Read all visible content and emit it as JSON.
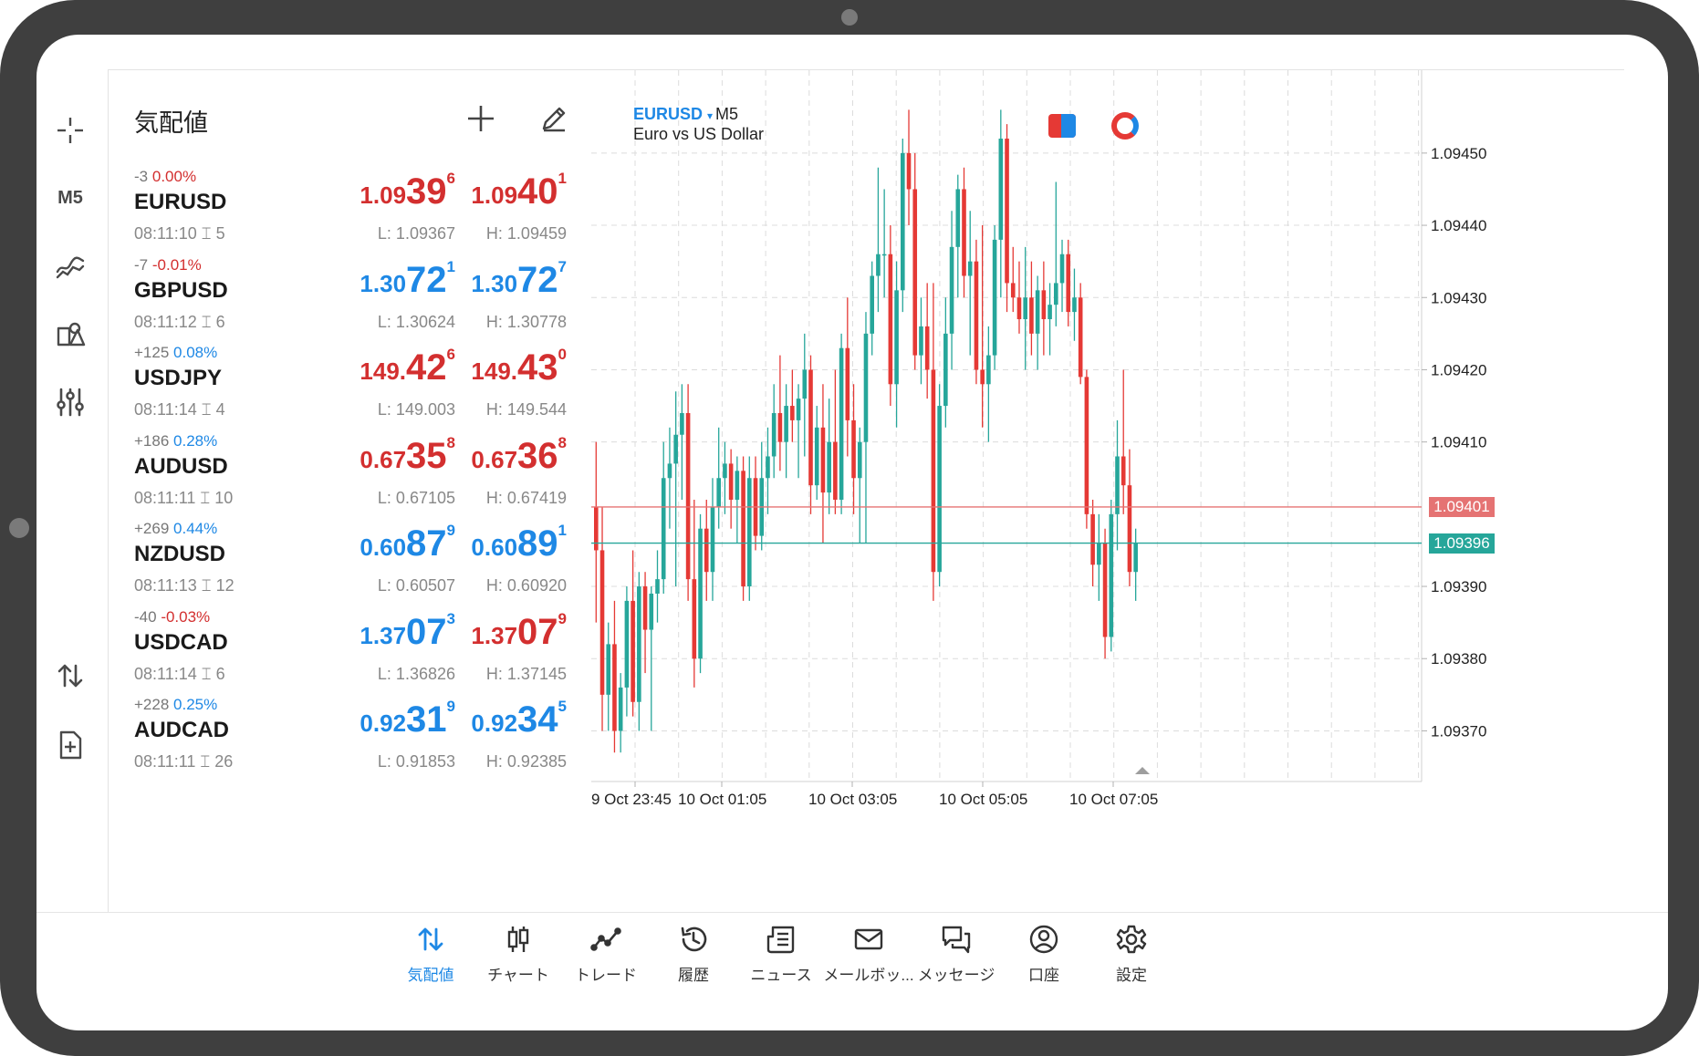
{
  "left_toolbar": {
    "timeframe": "M5"
  },
  "quotes": {
    "title": "気配値",
    "rows": [
      {
        "change": "-3",
        "pct": "0.00%",
        "pct_dir": "neg",
        "symbol": "EURUSD",
        "time": "08:11:10",
        "spread": "5",
        "bid": {
          "small": "1.09",
          "big": "39",
          "sup": "6",
          "color": "red"
        },
        "ask": {
          "small": "1.09",
          "big": "40",
          "sup": "1",
          "color": "red"
        },
        "low": "L: 1.09367",
        "high": "H: 1.09459"
      },
      {
        "change": "-7",
        "pct": "-0.01%",
        "pct_dir": "neg",
        "symbol": "GBPUSD",
        "time": "08:11:12",
        "spread": "6",
        "bid": {
          "small": "1.30",
          "big": "72",
          "sup": "1",
          "color": "blue"
        },
        "ask": {
          "small": "1.30",
          "big": "72",
          "sup": "7",
          "color": "blue"
        },
        "low": "L: 1.30624",
        "high": "H: 1.30778"
      },
      {
        "change": "+125",
        "pct": "0.08%",
        "pct_dir": "pos",
        "symbol": "USDJPY",
        "time": "08:11:14",
        "spread": "4",
        "bid": {
          "small": "149.",
          "big": "42",
          "sup": "6",
          "color": "red"
        },
        "ask": {
          "small": "149.",
          "big": "43",
          "sup": "0",
          "color": "red"
        },
        "low": "L: 149.003",
        "high": "H: 149.544"
      },
      {
        "change": "+186",
        "pct": "0.28%",
        "pct_dir": "pos",
        "symbol": "AUDUSD",
        "time": "08:11:11",
        "spread": "10",
        "bid": {
          "small": "0.67",
          "big": "35",
          "sup": "8",
          "color": "red"
        },
        "ask": {
          "small": "0.67",
          "big": "36",
          "sup": "8",
          "color": "red"
        },
        "low": "L: 0.67105",
        "high": "H: 0.67419"
      },
      {
        "change": "+269",
        "pct": "0.44%",
        "pct_dir": "pos",
        "symbol": "NZDUSD",
        "time": "08:11:13",
        "spread": "12",
        "bid": {
          "small": "0.60",
          "big": "87",
          "sup": "9",
          "color": "blue"
        },
        "ask": {
          "small": "0.60",
          "big": "89",
          "sup": "1",
          "color": "blue"
        },
        "low": "L: 0.60507",
        "high": "H: 0.60920"
      },
      {
        "change": "-40",
        "pct": "-0.03%",
        "pct_dir": "neg",
        "symbol": "USDCAD",
        "time": "08:11:14",
        "spread": "6",
        "bid": {
          "small": "1.37",
          "big": "07",
          "sup": "3",
          "color": "blue"
        },
        "ask": {
          "small": "1.37",
          "big": "07",
          "sup": "9",
          "color": "red"
        },
        "low": "L: 1.36826",
        "high": "H: 1.37145"
      },
      {
        "change": "+228",
        "pct": "0.25%",
        "pct_dir": "pos",
        "symbol": "AUDCAD",
        "time": "08:11:11",
        "spread": "26",
        "bid": {
          "small": "0.92",
          "big": "31",
          "sup": "9",
          "color": "blue"
        },
        "ask": {
          "small": "0.92",
          "big": "34",
          "sup": "5",
          "color": "blue"
        },
        "low": "L: 0.91853",
        "high": "H: 0.92385"
      }
    ]
  },
  "chart_header": {
    "symbol": "EURUSD",
    "dropdown": "▾",
    "timeframe": "M5",
    "description": "Euro vs US Dollar"
  },
  "chart_data": {
    "type": "candlestick",
    "symbol": "EURUSD",
    "timeframe": "M5",
    "y_ticks": [
      "1.09450",
      "1.09440",
      "1.09430",
      "1.09420",
      "1.09410",
      "1.09390",
      "1.09380",
      "1.09370"
    ],
    "y_tick_values": [
      1.0945,
      1.0944,
      1.0943,
      1.0942,
      1.0941,
      1.0939,
      1.0938,
      1.0937
    ],
    "ylim": [
      1.09365,
      1.0946
    ],
    "x_ticks": [
      "9 Oct 23:45",
      "10 Oct 01:05",
      "10 Oct 03:05",
      "10 Oct 05:05",
      "10 Oct 07:05"
    ],
    "ask_line": {
      "label": "1.09401",
      "value": 1.09401,
      "color": "#e57373"
    },
    "bid_line": {
      "label": "1.09396",
      "value": 1.09396,
      "color": "#26a69a"
    },
    "bull_color": "#26a69a",
    "bear_color": "#e53935",
    "grid": true,
    "candles": [
      {
        "o": 1.09401,
        "h": 1.0941,
        "l": 1.09385,
        "c": 1.09395
      },
      {
        "o": 1.09395,
        "h": 1.09401,
        "l": 1.0937,
        "c": 1.09375
      },
      {
        "o": 1.09375,
        "h": 1.09385,
        "l": 1.0937,
        "c": 1.09382
      },
      {
        "o": 1.09382,
        "h": 1.09388,
        "l": 1.09367,
        "c": 1.0937
      },
      {
        "o": 1.0937,
        "h": 1.09378,
        "l": 1.09367,
        "c": 1.09376
      },
      {
        "o": 1.09376,
        "h": 1.0939,
        "l": 1.09372,
        "c": 1.09388
      },
      {
        "o": 1.09388,
        "h": 1.09395,
        "l": 1.09372,
        "c": 1.09374
      },
      {
        "o": 1.09374,
        "h": 1.09392,
        "l": 1.0937,
        "c": 1.0939
      },
      {
        "o": 1.0939,
        "h": 1.09392,
        "l": 1.09378,
        "c": 1.09384
      },
      {
        "o": 1.09384,
        "h": 1.0939,
        "l": 1.0937,
        "c": 1.09389
      },
      {
        "o": 1.09389,
        "h": 1.09395,
        "l": 1.09385,
        "c": 1.09391
      },
      {
        "o": 1.09391,
        "h": 1.0941,
        "l": 1.09389,
        "c": 1.09405
      },
      {
        "o": 1.09405,
        "h": 1.09412,
        "l": 1.09398,
        "c": 1.09407
      },
      {
        "o": 1.09407,
        "h": 1.09417,
        "l": 1.0939,
        "c": 1.09411
      },
      {
        "o": 1.09411,
        "h": 1.09418,
        "l": 1.09402,
        "c": 1.09414
      },
      {
        "o": 1.09414,
        "h": 1.09418,
        "l": 1.09388,
        "c": 1.09391
      },
      {
        "o": 1.09391,
        "h": 1.09402,
        "l": 1.09376,
        "c": 1.0938
      },
      {
        "o": 1.0938,
        "h": 1.094,
        "l": 1.09378,
        "c": 1.09398
      },
      {
        "o": 1.09398,
        "h": 1.09402,
        "l": 1.09388,
        "c": 1.09392
      },
      {
        "o": 1.09392,
        "h": 1.09405,
        "l": 1.09388,
        "c": 1.09401
      },
      {
        "o": 1.09401,
        "h": 1.09412,
        "l": 1.09398,
        "c": 1.09405
      },
      {
        "o": 1.09405,
        "h": 1.0941,
        "l": 1.094,
        "c": 1.09407
      },
      {
        "o": 1.09407,
        "h": 1.09409,
        "l": 1.09398,
        "c": 1.09402
      },
      {
        "o": 1.09402,
        "h": 1.09408,
        "l": 1.09396,
        "c": 1.09406
      },
      {
        "o": 1.09406,
        "h": 1.09408,
        "l": 1.09388,
        "c": 1.0939
      },
      {
        "o": 1.0939,
        "h": 1.09408,
        "l": 1.09388,
        "c": 1.09405
      },
      {
        "o": 1.09405,
        "h": 1.09408,
        "l": 1.09395,
        "c": 1.09397
      },
      {
        "o": 1.09397,
        "h": 1.0941,
        "l": 1.09395,
        "c": 1.09405
      },
      {
        "o": 1.09405,
        "h": 1.09412,
        "l": 1.094,
        "c": 1.09408
      },
      {
        "o": 1.09408,
        "h": 1.09418,
        "l": 1.09405,
        "c": 1.09414
      },
      {
        "o": 1.09414,
        "h": 1.09422,
        "l": 1.09406,
        "c": 1.0941
      },
      {
        "o": 1.0941,
        "h": 1.09418,
        "l": 1.09405,
        "c": 1.09415
      },
      {
        "o": 1.09415,
        "h": 1.0942,
        "l": 1.0941,
        "c": 1.09413
      },
      {
        "o": 1.09413,
        "h": 1.09418,
        "l": 1.09405,
        "c": 1.09416
      },
      {
        "o": 1.09416,
        "h": 1.09425,
        "l": 1.09408,
        "c": 1.0942
      },
      {
        "o": 1.0942,
        "h": 1.09422,
        "l": 1.094,
        "c": 1.09404
      },
      {
        "o": 1.09404,
        "h": 1.09415,
        "l": 1.09402,
        "c": 1.09412
      },
      {
        "o": 1.09412,
        "h": 1.09418,
        "l": 1.09396,
        "c": 1.09403
      },
      {
        "o": 1.09403,
        "h": 1.09416,
        "l": 1.094,
        "c": 1.0941
      },
      {
        "o": 1.0941,
        "h": 1.0942,
        "l": 1.094,
        "c": 1.09402
      },
      {
        "o": 1.09402,
        "h": 1.09425,
        "l": 1.094,
        "c": 1.09423
      },
      {
        "o": 1.09423,
        "h": 1.0943,
        "l": 1.09408,
        "c": 1.09413
      },
      {
        "o": 1.09413,
        "h": 1.09418,
        "l": 1.094,
        "c": 1.09405
      },
      {
        "o": 1.09405,
        "h": 1.09412,
        "l": 1.09396,
        "c": 1.0941
      },
      {
        "o": 1.0941,
        "h": 1.09428,
        "l": 1.09396,
        "c": 1.09425
      },
      {
        "o": 1.09425,
        "h": 1.09435,
        "l": 1.09422,
        "c": 1.09433
      },
      {
        "o": 1.09433,
        "h": 1.09448,
        "l": 1.09428,
        "c": 1.09436
      },
      {
        "o": 1.09436,
        "h": 1.09445,
        "l": 1.0943,
        "c": 1.09436
      },
      {
        "o": 1.09436,
        "h": 1.0944,
        "l": 1.09415,
        "c": 1.09418
      },
      {
        "o": 1.09418,
        "h": 1.09435,
        "l": 1.09412,
        "c": 1.09431
      },
      {
        "o": 1.09431,
        "h": 1.09452,
        "l": 1.09428,
        "c": 1.0945
      },
      {
        "o": 1.0945,
        "h": 1.09456,
        "l": 1.0944,
        "c": 1.09445
      },
      {
        "o": 1.09445,
        "h": 1.0945,
        "l": 1.0942,
        "c": 1.09422
      },
      {
        "o": 1.09422,
        "h": 1.0943,
        "l": 1.09418,
        "c": 1.09426
      },
      {
        "o": 1.09426,
        "h": 1.09432,
        "l": 1.09416,
        "c": 1.0942
      },
      {
        "o": 1.0942,
        "h": 1.09432,
        "l": 1.09388,
        "c": 1.09392
      },
      {
        "o": 1.09392,
        "h": 1.09418,
        "l": 1.0939,
        "c": 1.09415
      },
      {
        "o": 1.09415,
        "h": 1.0943,
        "l": 1.09412,
        "c": 1.09425
      },
      {
        "o": 1.09425,
        "h": 1.09442,
        "l": 1.0942,
        "c": 1.09437
      },
      {
        "o": 1.09437,
        "h": 1.09447,
        "l": 1.0943,
        "c": 1.09445
      },
      {
        "o": 1.09445,
        "h": 1.09448,
        "l": 1.0943,
        "c": 1.09433
      },
      {
        "o": 1.09433,
        "h": 1.09442,
        "l": 1.09422,
        "c": 1.09435
      },
      {
        "o": 1.09435,
        "h": 1.09438,
        "l": 1.09418,
        "c": 1.0942
      },
      {
        "o": 1.0942,
        "h": 1.0944,
        "l": 1.09412,
        "c": 1.09418
      },
      {
        "o": 1.09418,
        "h": 1.09426,
        "l": 1.0941,
        "c": 1.09422
      },
      {
        "o": 1.09422,
        "h": 1.0944,
        "l": 1.0942,
        "c": 1.09438
      },
      {
        "o": 1.09438,
        "h": 1.09456,
        "l": 1.0943,
        "c": 1.09452
      },
      {
        "o": 1.09452,
        "h": 1.09454,
        "l": 1.09428,
        "c": 1.09432
      },
      {
        "o": 1.09432,
        "h": 1.09437,
        "l": 1.09428,
        "c": 1.0943
      },
      {
        "o": 1.0943,
        "h": 1.09435,
        "l": 1.09425,
        "c": 1.09427
      },
      {
        "o": 1.09427,
        "h": 1.09437,
        "l": 1.0942,
        "c": 1.0943
      },
      {
        "o": 1.0943,
        "h": 1.09435,
        "l": 1.09422,
        "c": 1.09425
      },
      {
        "o": 1.09425,
        "h": 1.09433,
        "l": 1.0942,
        "c": 1.09431
      },
      {
        "o": 1.09431,
        "h": 1.09435,
        "l": 1.09422,
        "c": 1.09427
      },
      {
        "o": 1.09427,
        "h": 1.09432,
        "l": 1.09422,
        "c": 1.09429
      },
      {
        "o": 1.09429,
        "h": 1.09446,
        "l": 1.09426,
        "c": 1.09432
      },
      {
        "o": 1.09432,
        "h": 1.09438,
        "l": 1.09428,
        "c": 1.09436
      },
      {
        "o": 1.09436,
        "h": 1.09438,
        "l": 1.09426,
        "c": 1.09428
      },
      {
        "o": 1.09428,
        "h": 1.09434,
        "l": 1.09424,
        "c": 1.0943
      },
      {
        "o": 1.0943,
        "h": 1.09432,
        "l": 1.09418,
        "c": 1.09419
      },
      {
        "o": 1.09419,
        "h": 1.0942,
        "l": 1.09398,
        "c": 1.094
      },
      {
        "o": 1.094,
        "h": 1.09402,
        "l": 1.0939,
        "c": 1.09393
      },
      {
        "o": 1.09393,
        "h": 1.094,
        "l": 1.09388,
        "c": 1.09396
      },
      {
        "o": 1.09396,
        "h": 1.09398,
        "l": 1.0938,
        "c": 1.09383
      },
      {
        "o": 1.09383,
        "h": 1.09402,
        "l": 1.09381,
        "c": 1.094
      },
      {
        "o": 1.094,
        "h": 1.09413,
        "l": 1.09395,
        "c": 1.09408
      },
      {
        "o": 1.09408,
        "h": 1.0942,
        "l": 1.094,
        "c": 1.09404
      },
      {
        "o": 1.09404,
        "h": 1.09409,
        "l": 1.0939,
        "c": 1.09392
      },
      {
        "o": 1.09392,
        "h": 1.09398,
        "l": 1.09388,
        "c": 1.09396
      }
    ]
  },
  "bottom_nav": {
    "items": [
      {
        "label": "気配値",
        "active": true
      },
      {
        "label": "チャート",
        "active": false
      },
      {
        "label": "トレード",
        "active": false
      },
      {
        "label": "履歴",
        "active": false
      },
      {
        "label": "ニュース",
        "active": false
      },
      {
        "label": "メールボッ...",
        "active": false
      },
      {
        "label": "メッセージ",
        "active": false
      },
      {
        "label": "口座",
        "active": false
      },
      {
        "label": "設定",
        "active": false
      }
    ]
  },
  "colors": {
    "accent": "#1e88e5",
    "down": "#d32f2f",
    "bull": "#26a69a",
    "bear": "#e53935"
  }
}
